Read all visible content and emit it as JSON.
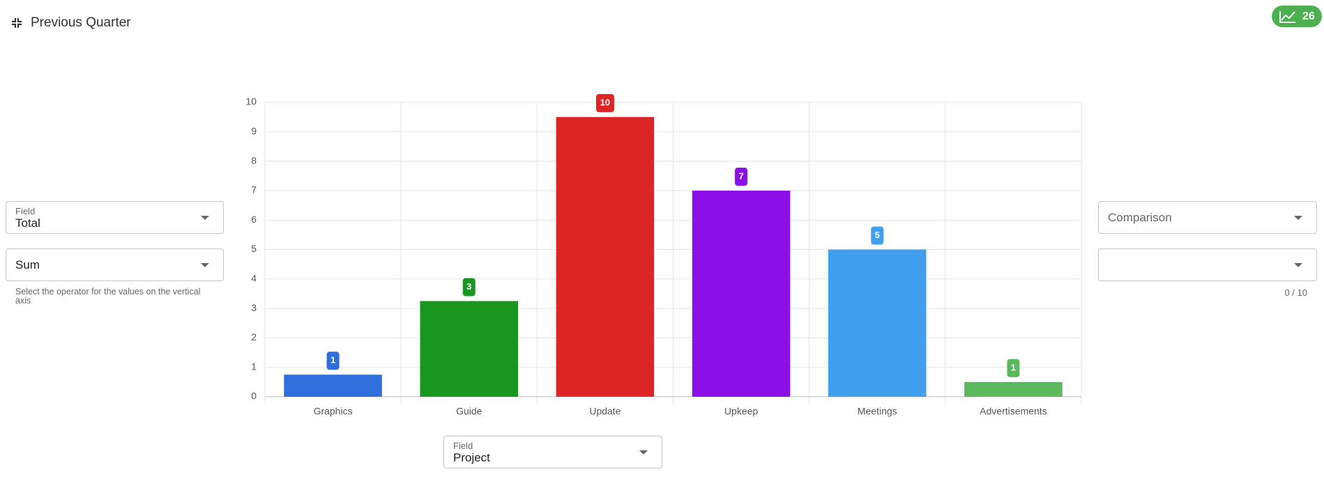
{
  "header": {
    "title": "Previous Quarter",
    "badge": "26"
  },
  "left_controls": {
    "field_label": "Field",
    "field_value": "Total",
    "operator": "Sum",
    "helper": "Select the operator for the values on the vertical axis"
  },
  "right_controls": {
    "comparison": "Comparison",
    "counter": "0 / 10"
  },
  "bottom_control": {
    "field_label": "Field",
    "field_value": "Project"
  },
  "chart_data": {
    "type": "bar",
    "categories": [
      "Graphics",
      "Guide",
      "Update",
      "Upkeep",
      "Meetings",
      "Advertisements"
    ],
    "values": [
      0.75,
      3.25,
      9.5,
      7,
      5,
      0.5
    ],
    "value_labels": [
      "1",
      "3",
      "10",
      "7",
      "5",
      "1"
    ],
    "colors": [
      "#2f6fdc",
      "#18961f",
      "#dc2626",
      "#8b10e8",
      "#40a0ee",
      "#5cb85c"
    ],
    "ylim": [
      0,
      10
    ],
    "yticks": [
      0,
      1,
      2,
      3,
      4,
      5,
      6,
      7,
      8,
      9,
      10
    ],
    "grid": true
  }
}
